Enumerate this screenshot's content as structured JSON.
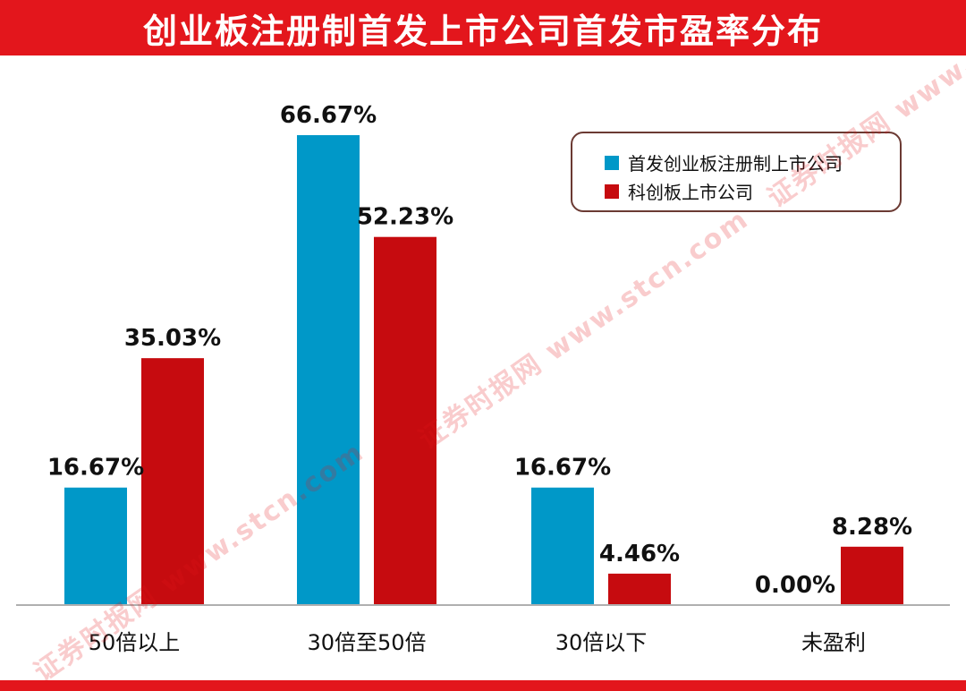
{
  "title": "创业板注册制首发上市公司首发市盈率分布",
  "watermark": "证券时报网 www.stcn.com",
  "colors": {
    "title_bar": "#e3161c",
    "series1": "#0098c8",
    "series2": "#c60b0f"
  },
  "chart_data": {
    "type": "bar",
    "title": "创业板注册制首发上市公司首发市盈率分布",
    "categories": [
      "50倍以上",
      "30倍至50倍",
      "30倍以下",
      "未盈利"
    ],
    "series": [
      {
        "name": "首发创业板注册制上市公司",
        "values": [
          16.67,
          66.67,
          16.67,
          0.0
        ],
        "labels": [
          "16.67%",
          "66.67%",
          "16.67%",
          "0.00%"
        ],
        "color": "#0098c8"
      },
      {
        "name": "科创板上市公司",
        "values": [
          35.03,
          52.23,
          4.46,
          8.28
        ],
        "labels": [
          "35.03%",
          "52.23%",
          "4.46%",
          "8.28%"
        ],
        "color": "#c60b0f"
      }
    ],
    "ylim": [
      0,
      66.67
    ],
    "grid": false,
    "legend_position": "top-right",
    "xlabel": "",
    "ylabel": ""
  }
}
